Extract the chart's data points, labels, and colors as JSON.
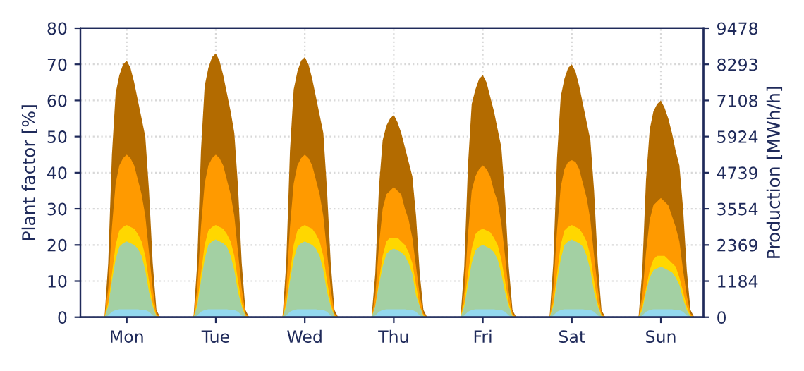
{
  "chart_data": {
    "type": "area",
    "ylabel": "Plant factor [%]",
    "y2label": "Production [MWh/h]",
    "categories": [
      null,
      null,
      null,
      null,
      null,
      null,
      null,
      null,
      null,
      null,
      null,
      null,
      "Mon",
      null,
      null,
      null,
      null,
      null,
      null,
      null,
      null,
      null,
      null,
      null,
      null,
      null,
      null,
      null,
      null,
      null,
      null,
      null,
      null,
      null,
      null,
      null,
      "Tue",
      null,
      null,
      null,
      null,
      null,
      null,
      null,
      null,
      null,
      null,
      null,
      null,
      null,
      null,
      null,
      null,
      null,
      null,
      null,
      null,
      null,
      null,
      null,
      "Wed",
      null,
      null,
      null,
      null,
      null,
      null,
      null,
      null,
      null,
      null,
      null,
      null,
      null,
      null,
      null,
      null,
      null,
      null,
      null,
      null,
      null,
      null,
      null,
      "Thu",
      null,
      null,
      null,
      null,
      null,
      null,
      null,
      null,
      null,
      null,
      null,
      null,
      null,
      null,
      null,
      null,
      null,
      null,
      null,
      null,
      null,
      null,
      null,
      "Fri",
      null,
      null,
      null,
      null,
      null,
      null,
      null,
      null,
      null,
      null,
      null,
      null,
      null,
      null,
      null,
      null,
      null,
      null,
      null,
      null,
      null,
      null,
      null,
      "Sat",
      null,
      null,
      null,
      null,
      null,
      null,
      null,
      null,
      null,
      null,
      null,
      null,
      null,
      null,
      null,
      null,
      null,
      null,
      null,
      null,
      null,
      null,
      null,
      "Sun",
      null,
      null,
      null,
      null,
      null,
      null,
      null,
      null,
      null,
      null,
      null
    ],
    "series": [
      {
        "color": "#b36b00",
        "values": [
          0,
          0,
          0,
          0,
          0,
          0,
          0,
          15,
          45,
          62,
          67,
          70,
          71,
          69,
          65,
          60,
          55,
          50,
          35,
          15,
          2,
          0,
          0,
          0,
          0,
          0,
          0,
          0,
          0,
          0,
          0,
          15,
          46,
          64,
          69,
          72,
          73,
          71,
          67,
          62,
          57,
          51,
          36,
          15,
          2,
          0,
          0,
          0,
          0,
          0,
          0,
          0,
          0,
          0,
          0,
          15,
          46,
          63,
          68,
          71,
          72,
          70,
          66,
          61,
          56,
          51,
          35,
          15,
          2,
          0,
          0,
          0,
          0,
          0,
          0,
          0,
          0,
          0,
          0,
          12,
          36,
          49,
          53,
          55,
          56,
          54,
          51,
          47,
          43,
          39,
          28,
          12,
          2,
          0,
          0,
          0,
          0,
          0,
          0,
          0,
          0,
          0,
          0,
          14,
          42,
          59,
          63,
          66,
          67,
          65,
          61,
          57,
          52,
          47,
          33,
          14,
          2,
          0,
          0,
          0,
          0,
          0,
          0,
          0,
          0,
          0,
          0,
          15,
          44,
          61,
          66,
          69,
          70,
          68,
          64,
          59,
          54,
          49,
          35,
          15,
          2,
          0,
          0,
          0,
          0,
          0,
          0,
          0,
          0,
          0,
          0,
          13,
          38,
          52,
          57,
          59,
          60,
          58,
          55,
          51,
          46,
          42,
          30,
          13,
          2,
          0,
          0,
          0
        ]
      },
      {
        "color": "#ff9a00",
        "values": [
          0,
          0,
          0,
          0,
          0,
          0,
          0,
          8,
          25,
          37,
          42,
          44,
          45,
          44,
          42,
          38,
          34,
          28,
          18,
          8,
          1,
          0,
          0,
          0,
          0,
          0,
          0,
          0,
          0,
          0,
          0,
          8,
          25,
          37,
          42,
          44,
          45,
          44,
          42,
          38,
          34,
          28,
          18,
          8,
          1,
          0,
          0,
          0,
          0,
          0,
          0,
          0,
          0,
          0,
          0,
          8,
          25,
          37,
          42,
          44,
          45,
          44,
          42,
          38,
          34,
          28,
          18,
          8,
          1,
          0,
          0,
          0,
          0,
          0,
          0,
          0,
          0,
          0,
          0,
          6,
          20,
          30,
          34,
          35,
          36,
          35,
          34,
          30,
          27,
          22,
          14,
          6,
          1,
          0,
          0,
          0,
          0,
          0,
          0,
          0,
          0,
          0,
          0,
          7,
          23,
          35,
          39,
          41,
          42,
          41,
          39,
          35,
          32,
          26,
          17,
          7,
          1,
          0,
          0,
          0,
          0,
          0,
          0,
          0,
          0,
          0,
          0,
          8,
          24,
          36,
          41,
          43,
          43.5,
          43,
          41,
          37,
          33,
          27,
          17,
          8,
          1,
          0,
          0,
          0,
          0,
          0,
          0,
          0,
          0,
          0,
          0,
          6,
          18,
          27,
          31,
          32,
          33,
          32,
          31,
          28,
          25,
          21,
          13,
          6,
          1,
          0,
          0,
          0
        ]
      },
      {
        "color": "#ffd700",
        "values": [
          0,
          0,
          0,
          0,
          0,
          0,
          0,
          4,
          12,
          20,
          24,
          25,
          25.5,
          25,
          24.5,
          23,
          21,
          17,
          10,
          4,
          0.5,
          0,
          0,
          0,
          0,
          0,
          0,
          0,
          0,
          0,
          0,
          4,
          12,
          20,
          24,
          25,
          25.5,
          25,
          24.5,
          23,
          21,
          17,
          10,
          4,
          0.5,
          0,
          0,
          0,
          0,
          0,
          0,
          0,
          0,
          0,
          0,
          4,
          12,
          20,
          24,
          25,
          25.5,
          25,
          24.5,
          23,
          21,
          17,
          10,
          4,
          0.5,
          0,
          0,
          0,
          0,
          0,
          0,
          0,
          0,
          0,
          0,
          3,
          10,
          17,
          21,
          22,
          22,
          22,
          21,
          20,
          18,
          15,
          9,
          3,
          0.5,
          0,
          0,
          0,
          0,
          0,
          0,
          0,
          0,
          0,
          0,
          4,
          12,
          19,
          23,
          24,
          24.5,
          24,
          23.5,
          22,
          20,
          16,
          10,
          4,
          0.5,
          0,
          0,
          0,
          0,
          0,
          0,
          0,
          0,
          0,
          0,
          4,
          12,
          20,
          24,
          25,
          25.5,
          25,
          24.5,
          23,
          21,
          17,
          10,
          4,
          0.5,
          0,
          0,
          0,
          0,
          0,
          0,
          0,
          0,
          0,
          0,
          3,
          8,
          13,
          16,
          17,
          17,
          17,
          16,
          15,
          14,
          11,
          7,
          3,
          0.5,
          0,
          0,
          0
        ]
      },
      {
        "color": "#a3d0a3",
        "values": [
          0,
          0,
          0,
          0,
          0,
          0,
          0,
          3,
          10,
          16,
          19.5,
          20.5,
          21,
          20.5,
          20,
          19,
          17,
          13,
          7,
          3,
          0.3,
          0,
          0,
          0,
          0,
          0,
          0,
          0,
          0,
          0,
          0,
          3,
          10,
          16,
          20,
          21,
          21.5,
          21,
          20.5,
          19.5,
          17,
          13,
          7,
          3,
          0.3,
          0,
          0,
          0,
          0,
          0,
          0,
          0,
          0,
          0,
          0,
          3,
          10,
          16,
          19.5,
          20.5,
          21,
          20.5,
          20,
          19,
          17,
          13,
          7,
          3,
          0.3,
          0,
          0,
          0,
          0,
          0,
          0,
          0,
          0,
          0,
          0,
          3,
          9,
          14,
          17.5,
          18.5,
          19,
          18.5,
          18,
          17,
          15,
          12,
          6,
          3,
          0.3,
          0,
          0,
          0,
          0,
          0,
          0,
          0,
          0,
          0,
          0,
          3,
          9,
          15,
          18.5,
          19.5,
          20,
          19.5,
          19,
          18,
          16,
          12,
          7,
          3,
          0.3,
          0,
          0,
          0,
          0,
          0,
          0,
          0,
          0,
          0,
          0,
          3,
          10,
          16,
          20,
          21,
          21.5,
          21,
          20.5,
          19.5,
          17,
          13,
          7,
          3,
          0.3,
          0,
          0,
          0,
          0,
          0,
          0,
          0,
          0,
          0,
          0,
          2,
          7,
          11,
          13,
          13.5,
          14,
          13.5,
          13,
          12.5,
          11,
          9,
          5,
          2,
          0.2,
          0,
          0,
          0
        ]
      },
      {
        "color": "#93d8ee",
        "values": [
          0,
          0,
          0,
          0,
          0,
          0,
          0,
          0.5,
          1.5,
          2,
          2.2,
          2.2,
          2.2,
          2.2,
          2.2,
          2.2,
          2,
          2,
          1.5,
          0.5,
          0,
          0,
          0,
          0,
          0,
          0,
          0,
          0,
          0,
          0,
          0,
          0.5,
          1.5,
          2,
          2.2,
          2.2,
          2.2,
          2.2,
          2.2,
          2.2,
          2,
          2,
          1.5,
          0.5,
          0,
          0,
          0,
          0,
          0,
          0,
          0,
          0,
          0,
          0,
          0,
          0.5,
          1.5,
          2,
          2.2,
          2.2,
          2.2,
          2.2,
          2.2,
          2.2,
          2,
          2,
          1.5,
          0.5,
          0,
          0,
          0,
          0,
          0,
          0,
          0,
          0,
          0,
          0,
          0,
          0.5,
          1.5,
          2,
          2.2,
          2.2,
          2.2,
          2.2,
          2.2,
          2.2,
          2,
          2,
          1.5,
          0.5,
          0,
          0,
          0,
          0,
          0,
          0,
          0,
          0,
          0,
          0,
          0,
          0.5,
          1.5,
          2,
          2.2,
          2.2,
          2.2,
          2.2,
          2.2,
          2.2,
          2,
          2,
          1.5,
          0.5,
          0,
          0,
          0,
          0,
          0,
          0,
          0,
          0,
          0,
          0,
          0,
          0.5,
          1.5,
          2,
          2.2,
          2.2,
          2.2,
          2.2,
          2.2,
          2.2,
          2,
          2,
          1.5,
          0.5,
          0,
          0,
          0,
          0,
          0,
          0,
          0,
          0,
          0,
          0,
          0,
          0.5,
          1.5,
          2,
          2.2,
          2.2,
          2.2,
          2.2,
          2.2,
          2.2,
          2,
          2,
          1.5,
          0.5,
          0,
          0,
          0,
          0
        ]
      }
    ],
    "ylim": [
      0,
      80
    ],
    "yticks": [
      0,
      10,
      20,
      30,
      40,
      50,
      60,
      70,
      80
    ],
    "y2lim": [
      0,
      9478
    ],
    "y2ticks": [
      0,
      1184,
      2369,
      3554,
      4739,
      5924,
      7108,
      8293,
      9478
    ],
    "grid": true,
    "legend": false
  }
}
